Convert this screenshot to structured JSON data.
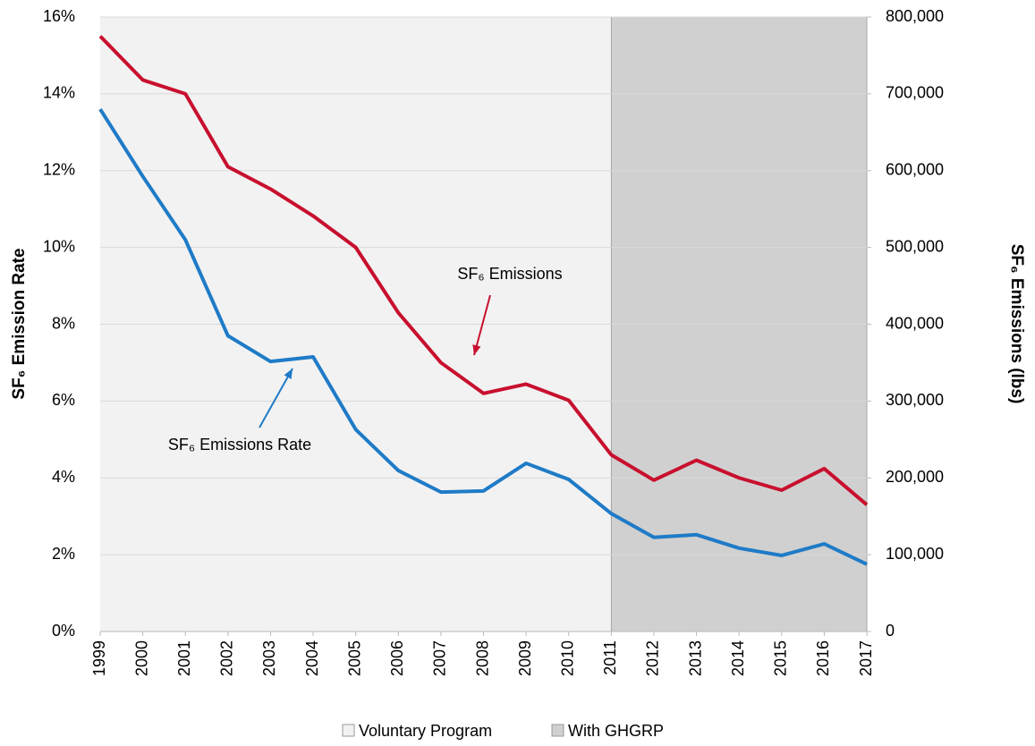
{
  "chart_data": {
    "type": "line",
    "x": [
      1999,
      2000,
      2001,
      2002,
      2003,
      2004,
      2005,
      2006,
      2007,
      2008,
      2009,
      2010,
      2011,
      2012,
      2013,
      2014,
      2015,
      2016,
      2017
    ],
    "xlim": [
      1999,
      2017
    ],
    "xticks": [
      1999,
      2000,
      2001,
      2002,
      2003,
      2004,
      2005,
      2006,
      2007,
      2008,
      2009,
      2010,
      2011,
      2012,
      2013,
      2014,
      2015,
      2016,
      2017
    ],
    "ylabel": "SF₆ Emission Rate",
    "y2label": "SF₆ Emissions (lbs)",
    "ylim": [
      0,
      16
    ],
    "yticks": [
      {
        "value": 0,
        "label": "0%"
      },
      {
        "value": 2,
        "label": "2%"
      },
      {
        "value": 4,
        "label": "4%"
      },
      {
        "value": 6,
        "label": "6%"
      },
      {
        "value": 8,
        "label": "8%"
      },
      {
        "value": 10,
        "label": "10%"
      },
      {
        "value": 12,
        "label": "12%"
      },
      {
        "value": 14,
        "label": "14%"
      },
      {
        "value": 16,
        "label": "16%"
      }
    ],
    "y2lim": [
      0,
      800000
    ],
    "y2ticks": [
      0,
      {
        "value": 100000,
        "label": "100,000"
      },
      {
        "value": 200000,
        "label": "200,000"
      },
      {
        "value": 300000,
        "label": "300,000"
      },
      {
        "value": 400000,
        "label": "400,000"
      },
      {
        "value": 500000,
        "label": "500,000"
      },
      {
        "value": 600000,
        "label": "600,000"
      },
      {
        "value": 700000,
        "label": "700,000"
      },
      {
        "value": 800000,
        "label": "800,000"
      }
    ],
    "grid": true,
    "regions": [
      {
        "name": "Voluntary Program",
        "color": "#f2f2f2",
        "start": 1999,
        "end": 2011
      },
      {
        "name": "With GHGRP",
        "color": "#d0d0d0",
        "start": 2011,
        "end": 2017
      }
    ],
    "series": [
      {
        "name": "SF₆ Emissions Rate",
        "color": "#1f7bc7",
        "axis": "y",
        "values": [
          13.6,
          11.85,
          10.2,
          7.7,
          7.03,
          7.15,
          5.26,
          4.19,
          3.63,
          3.66,
          4.38,
          3.96,
          3.07,
          2.45,
          2.52,
          2.17,
          1.98,
          2.28,
          1.75
        ]
      },
      {
        "name": "SF₆ Emissions",
        "color": "#c8102e",
        "axis": "y2",
        "values": [
          775000,
          718000,
          700000,
          605000,
          576000,
          541000,
          500000,
          415000,
          350000,
          310000,
          322000,
          301000,
          230000,
          197000,
          223000,
          200000,
          184000,
          212000,
          165000
        ]
      }
    ]
  }
}
